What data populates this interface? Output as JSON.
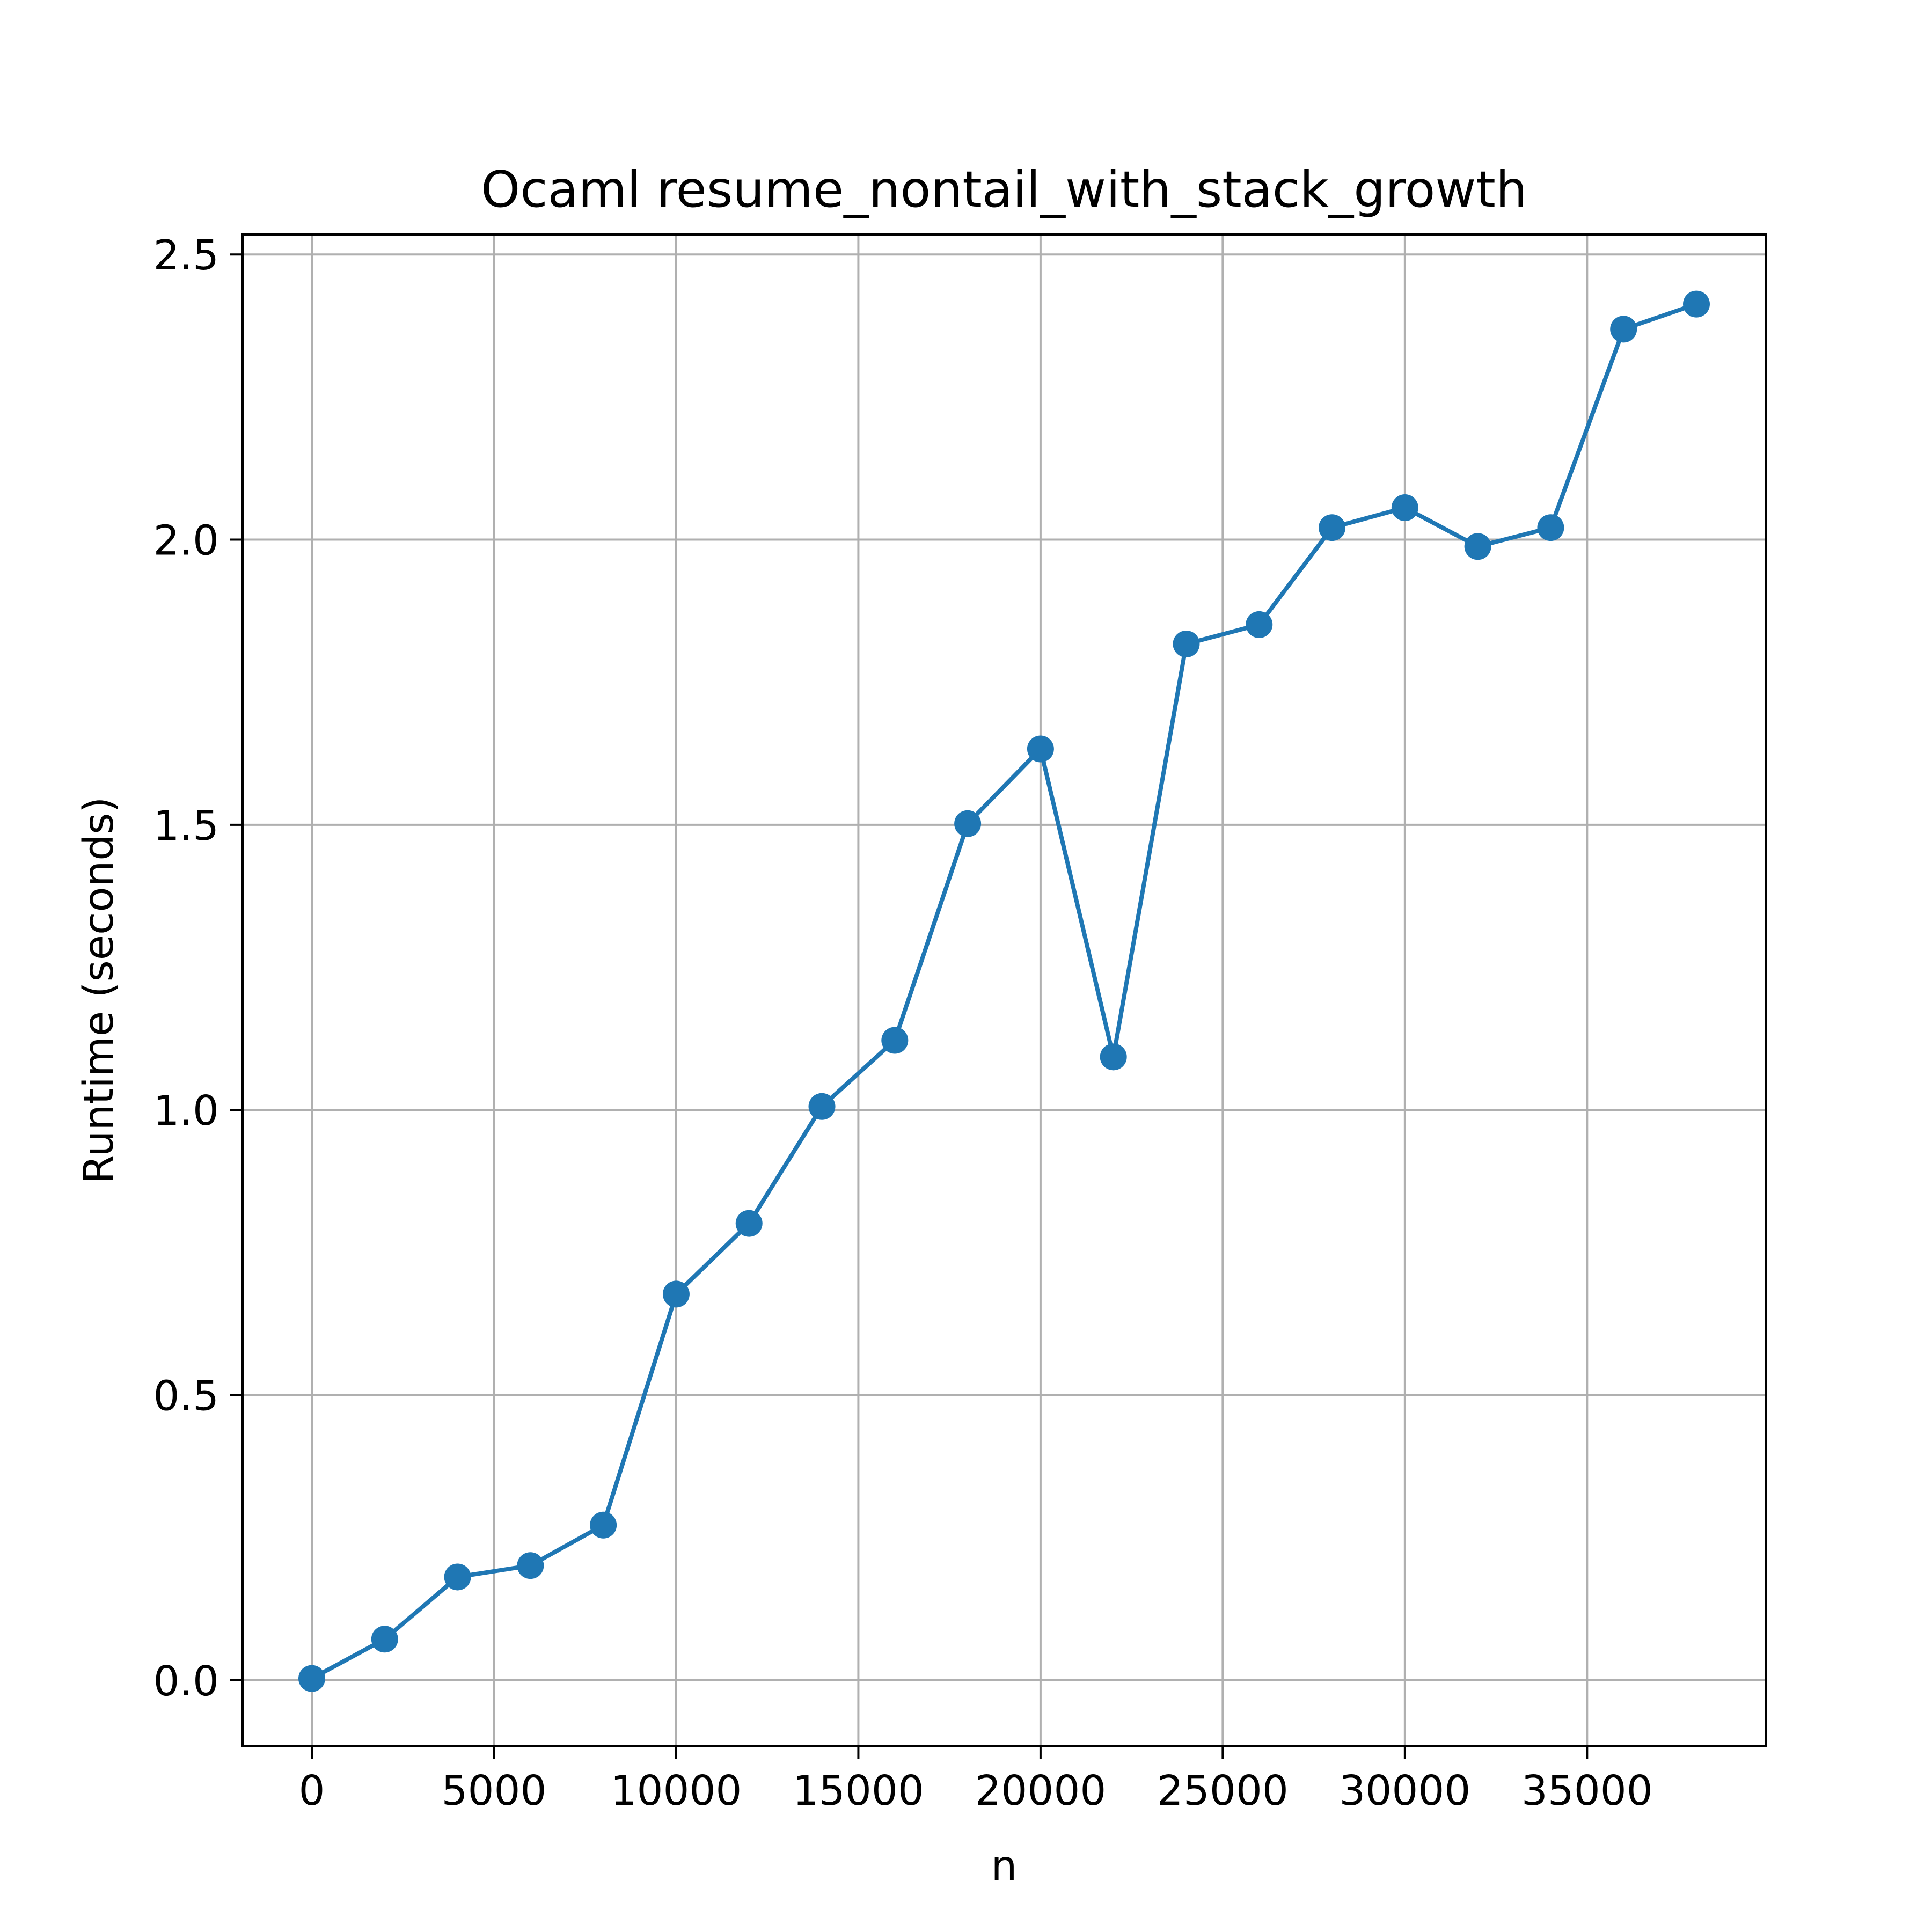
{
  "chart_data": {
    "type": "line",
    "title": "Ocaml resume_nontail_with_stack_growth",
    "xlabel": "n",
    "ylabel": "Runtime (seconds)",
    "xlim": [
      -1900,
      39900
    ],
    "ylim": [
      -0.115,
      2.535
    ],
    "xticks": [
      0,
      5000,
      10000,
      15000,
      20000,
      25000,
      30000,
      35000
    ],
    "xtick_labels": [
      "0",
      "5000",
      "10000",
      "15000",
      "20000",
      "25000",
      "30000",
      "35000"
    ],
    "yticks": [
      0.0,
      0.5,
      1.0,
      1.5,
      2.0,
      2.5
    ],
    "ytick_labels": [
      "0.0",
      "0.5",
      "1.0",
      "1.5",
      "2.0",
      "2.5"
    ],
    "grid": true,
    "color": "#1f77b4",
    "marker": "circle",
    "x": [
      0,
      2000,
      4000,
      6000,
      8000,
      10000,
      12000,
      14000,
      16000,
      18000,
      20000,
      22000,
      24000,
      26000,
      28000,
      30000,
      32000,
      34000,
      36000,
      38000
    ],
    "y": [
      0.003,
      0.072,
      0.181,
      0.201,
      0.272,
      0.677,
      0.801,
      1.006,
      1.122,
      1.502,
      1.633,
      1.093,
      1.817,
      1.851,
      2.021,
      2.056,
      1.988,
      2.021,
      2.369,
      2.413
    ]
  }
}
